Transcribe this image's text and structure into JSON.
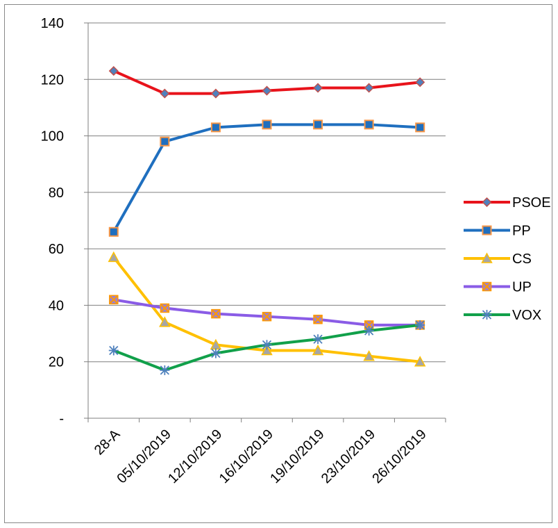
{
  "chart_data": {
    "type": "line",
    "categories": [
      "28-A",
      "05/10/2019",
      "12/10/2019",
      "16/10/2019",
      "19/10/2019",
      "23/10/2019",
      "26/10/2019"
    ],
    "ylim": [
      0,
      140
    ],
    "y_ticks": [
      "-",
      "20",
      "40",
      "60",
      "80",
      "100",
      "120",
      "140"
    ],
    "y_tick_values": [
      0,
      20,
      40,
      60,
      80,
      100,
      120,
      140
    ],
    "grid": true,
    "legend_position": "right",
    "series": [
      {
        "name": "PSOE",
        "color": "#e8131b",
        "marker": "diamond",
        "marker_fill": "#4f81bd",
        "marker_stroke": "#c0504d",
        "values": [
          123,
          115,
          115,
          116,
          117,
          117,
          119
        ]
      },
      {
        "name": "PP",
        "color": "#1f6fbf",
        "marker": "square",
        "marker_fill": "#1f6fbf",
        "marker_stroke": "#f79646",
        "values": [
          66,
          98,
          103,
          104,
          104,
          104,
          103
        ]
      },
      {
        "name": "CS",
        "color": "#ffc000",
        "marker": "triangle",
        "marker_fill": "#a6a6a6",
        "marker_stroke": "#ffc000",
        "values": [
          57,
          34,
          26,
          24,
          24,
          22,
          20
        ]
      },
      {
        "name": "UP",
        "color": "#8a5ce6",
        "marker": "x-box",
        "marker_fill": "#9a7fd6",
        "marker_stroke": "#ff9900",
        "values": [
          42,
          39,
          37,
          36,
          35,
          33,
          33
        ]
      },
      {
        "name": "VOX",
        "color": "#11a04a",
        "marker": "star",
        "marker_fill": "#4f81bd",
        "marker_stroke": "#4f81bd",
        "values": [
          24,
          17,
          23,
          26,
          28,
          31,
          33
        ]
      }
    ]
  }
}
